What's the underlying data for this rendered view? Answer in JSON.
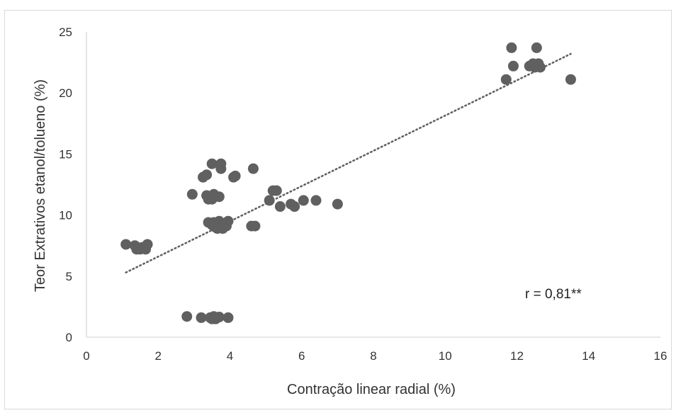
{
  "chart_data": {
    "type": "scatter",
    "title": "",
    "xlabel": "Contração linear radial (%)",
    "ylabel": "Teor Extrativos etanol/tolueno (%)",
    "xlim": [
      0,
      16
    ],
    "ylim": [
      0,
      25
    ],
    "x_ticks": [
      0,
      2,
      4,
      6,
      8,
      10,
      12,
      14,
      16
    ],
    "y_ticks": [
      0,
      5,
      10,
      15,
      20,
      25
    ],
    "x_tick_labels": [
      "0",
      "2",
      "4",
      "6",
      "8",
      "10",
      "12",
      "14",
      "16"
    ],
    "y_tick_labels": [
      "0",
      "5",
      "10",
      "15",
      "20",
      "25"
    ],
    "grid": false,
    "legend": "none",
    "marker_color": "#606060",
    "trendline": {
      "style": "dotted",
      "color": "#606060",
      "from": [
        1.1,
        5.3
      ],
      "to": [
        13.5,
        23.2
      ]
    },
    "annotation": "r = 0,81**",
    "points": [
      [
        1.1,
        7.6
      ],
      [
        1.35,
        7.5
      ],
      [
        1.4,
        7.2
      ],
      [
        1.5,
        7.2
      ],
      [
        1.55,
        7.35
      ],
      [
        1.65,
        7.2
      ],
      [
        1.7,
        7.6
      ],
      [
        2.8,
        1.7
      ],
      [
        3.2,
        1.6
      ],
      [
        3.45,
        1.6
      ],
      [
        3.5,
        1.5
      ],
      [
        3.55,
        1.7
      ],
      [
        3.6,
        1.5
      ],
      [
        3.7,
        1.65
      ],
      [
        3.95,
        1.6
      ],
      [
        2.95,
        11.7
      ],
      [
        3.35,
        11.6
      ],
      [
        3.4,
        11.3
      ],
      [
        3.5,
        11.3
      ],
      [
        3.55,
        11.7
      ],
      [
        3.7,
        11.5
      ],
      [
        3.25,
        13.1
      ],
      [
        3.35,
        13.3
      ],
      [
        3.5,
        14.2
      ],
      [
        3.75,
        14.2
      ],
      [
        3.75,
        13.8
      ],
      [
        4.1,
        13.1
      ],
      [
        4.15,
        13.2
      ],
      [
        4.65,
        13.8
      ],
      [
        3.4,
        9.4
      ],
      [
        3.5,
        9.2
      ],
      [
        3.55,
        9.4
      ],
      [
        3.6,
        9.0
      ],
      [
        3.65,
        8.9
      ],
      [
        3.7,
        9.5
      ],
      [
        3.75,
        9.0
      ],
      [
        3.8,
        8.9
      ],
      [
        3.9,
        9.1
      ],
      [
        3.95,
        9.5
      ],
      [
        4.6,
        9.1
      ],
      [
        4.7,
        9.1
      ],
      [
        5.1,
        11.2
      ],
      [
        5.2,
        12.0
      ],
      [
        5.3,
        12.0
      ],
      [
        5.4,
        10.7
      ],
      [
        5.7,
        10.9
      ],
      [
        5.8,
        10.7
      ],
      [
        6.05,
        11.2
      ],
      [
        6.4,
        11.2
      ],
      [
        7.0,
        10.9
      ],
      [
        11.7,
        21.1
      ],
      [
        11.85,
        23.7
      ],
      [
        11.9,
        22.2
      ],
      [
        12.35,
        22.2
      ],
      [
        12.45,
        22.4
      ],
      [
        12.5,
        22.1
      ],
      [
        12.55,
        23.7
      ],
      [
        12.55,
        22.3
      ],
      [
        12.6,
        22.4
      ],
      [
        12.65,
        22.1
      ],
      [
        13.5,
        21.1
      ]
    ]
  }
}
